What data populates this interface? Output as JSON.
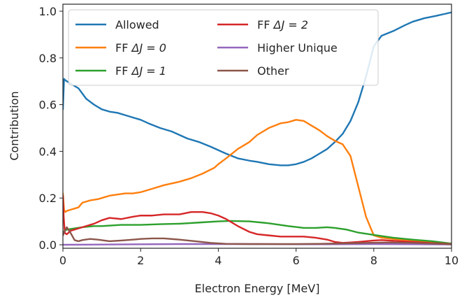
{
  "chart_data": {
    "type": "line",
    "title": "",
    "xlabel": "Electron Energy [MeV]",
    "ylabel": "Contribution",
    "xlim": [
      0,
      10
    ],
    "ylim": [
      -0.015,
      1.03
    ],
    "xticks": [
      0,
      2,
      4,
      6,
      8,
      10
    ],
    "yticks": [
      0.0,
      0.2,
      0.4,
      0.6,
      0.8,
      1.0
    ],
    "xtick_labels": [
      "0",
      "2",
      "4",
      "6",
      "8",
      "10"
    ],
    "ytick_labels": [
      "0.0",
      "0.2",
      "0.4",
      "0.6",
      "0.8",
      "1.0"
    ],
    "grid": false,
    "legend_placement": "top-left",
    "legend_columns": 2,
    "series": [
      {
        "name": "Allowed",
        "label_plain": "Allowed",
        "color": "#1f77b4",
        "x": [
          0.0,
          0.03,
          0.06,
          0.1,
          0.2,
          0.4,
          0.6,
          0.8,
          1.0,
          1.2,
          1.4,
          1.6,
          1.8,
          2.0,
          2.2,
          2.5,
          2.8,
          3.0,
          3.2,
          3.5,
          3.8,
          4.0,
          4.2,
          4.5,
          4.8,
          5.0,
          5.3,
          5.6,
          5.8,
          6.0,
          6.2,
          6.4,
          6.6,
          6.8,
          7.0,
          7.2,
          7.4,
          7.6,
          7.8,
          8.0,
          8.2,
          8.5,
          8.8,
          9.0,
          9.3,
          9.6,
          10.0
        ],
        "y": [
          0.58,
          0.71,
          0.705,
          0.7,
          0.69,
          0.67,
          0.625,
          0.6,
          0.58,
          0.57,
          0.565,
          0.555,
          0.545,
          0.535,
          0.52,
          0.5,
          0.485,
          0.47,
          0.455,
          0.44,
          0.42,
          0.405,
          0.39,
          0.37,
          0.36,
          0.355,
          0.345,
          0.34,
          0.34,
          0.345,
          0.355,
          0.37,
          0.39,
          0.41,
          0.44,
          0.475,
          0.53,
          0.61,
          0.72,
          0.85,
          0.895,
          0.915,
          0.94,
          0.955,
          0.97,
          0.98,
          0.995
        ]
      },
      {
        "name": "FF ΔJ = 0",
        "label_plain": "FF ",
        "label_math": "ΔJ = 0",
        "color": "#ff7f0e",
        "x": [
          0.0,
          0.03,
          0.06,
          0.1,
          0.2,
          0.4,
          0.5,
          0.7,
          0.9,
          1.0,
          1.2,
          1.4,
          1.6,
          1.8,
          2.0,
          2.3,
          2.6,
          3.0,
          3.3,
          3.6,
          3.9,
          4.0,
          4.2,
          4.5,
          4.8,
          5.0,
          5.3,
          5.6,
          5.8,
          6.0,
          6.2,
          6.4,
          6.6,
          6.8,
          7.0,
          7.2,
          7.4,
          7.6,
          7.8,
          8.0,
          8.2,
          8.5,
          9.0,
          9.5,
          10.0
        ],
        "y": [
          0.22,
          0.15,
          0.14,
          0.145,
          0.15,
          0.16,
          0.18,
          0.19,
          0.195,
          0.2,
          0.21,
          0.215,
          0.22,
          0.22,
          0.225,
          0.24,
          0.255,
          0.27,
          0.285,
          0.305,
          0.33,
          0.345,
          0.37,
          0.41,
          0.44,
          0.47,
          0.5,
          0.52,
          0.525,
          0.535,
          0.53,
          0.51,
          0.49,
          0.465,
          0.445,
          0.43,
          0.38,
          0.25,
          0.12,
          0.04,
          0.03,
          0.025,
          0.018,
          0.01,
          0.003
        ]
      },
      {
        "name": "FF ΔJ = 1",
        "label_plain": "FF ",
        "label_math": "ΔJ = 1",
        "color": "#2ca02c",
        "x": [
          0.0,
          0.05,
          0.1,
          0.3,
          0.5,
          0.8,
          1.0,
          1.5,
          2.0,
          2.5,
          3.0,
          3.5,
          4.0,
          4.3,
          4.8,
          5.3,
          5.8,
          6.2,
          6.5,
          6.8,
          7.0,
          7.3,
          7.6,
          8.0,
          8.5,
          9.0,
          9.5,
          10.0
        ],
        "y": [
          0.05,
          0.06,
          0.065,
          0.07,
          0.075,
          0.08,
          0.08,
          0.085,
          0.085,
          0.088,
          0.09,
          0.095,
          0.1,
          0.102,
          0.1,
          0.092,
          0.08,
          0.072,
          0.072,
          0.075,
          0.072,
          0.065,
          0.052,
          0.042,
          0.03,
          0.022,
          0.015,
          0.005
        ]
      },
      {
        "name": "FF ΔJ = 2",
        "label_plain": "FF ",
        "label_math": "ΔJ = 2",
        "color": "#d62728",
        "x": [
          0.0,
          0.02,
          0.05,
          0.1,
          0.2,
          0.4,
          0.6,
          0.8,
          1.0,
          1.2,
          1.5,
          1.8,
          2.0,
          2.3,
          2.6,
          2.8,
          3.0,
          3.3,
          3.6,
          3.8,
          4.0,
          4.2,
          4.5,
          4.8,
          5.0,
          5.3,
          5.6,
          5.9,
          6.2,
          6.5,
          6.8,
          7.0,
          7.2,
          7.4,
          7.6,
          7.8,
          8.0,
          8.2,
          8.5,
          9.0,
          9.5,
          10.0
        ],
        "y": [
          0.21,
          0.12,
          0.05,
          0.045,
          0.06,
          0.07,
          0.08,
          0.09,
          0.105,
          0.115,
          0.11,
          0.12,
          0.125,
          0.125,
          0.13,
          0.13,
          0.13,
          0.14,
          0.14,
          0.135,
          0.125,
          0.11,
          0.08,
          0.055,
          0.045,
          0.04,
          0.035,
          0.035,
          0.035,
          0.03,
          0.022,
          0.012,
          0.008,
          0.01,
          0.012,
          0.015,
          0.018,
          0.02,
          0.017,
          0.012,
          0.007,
          0.003
        ]
      },
      {
        "name": "Higher Unique",
        "label_plain": "Higher Unique",
        "color": "#9467bd",
        "x": [
          0.0,
          1.0,
          2.0,
          3.0,
          4.0,
          5.0,
          6.0,
          7.0,
          8.0,
          9.0,
          10.0
        ],
        "y": [
          0.0,
          0.001,
          0.002,
          0.003,
          0.003,
          0.003,
          0.002,
          0.002,
          0.003,
          0.002,
          0.001
        ]
      },
      {
        "name": "Other",
        "label_plain": "Other",
        "color": "#8c564b",
        "x": [
          0.0,
          0.05,
          0.1,
          0.2,
          0.3,
          0.4,
          0.5,
          0.7,
          0.9,
          1.2,
          1.5,
          1.8,
          2.0,
          2.3,
          2.6,
          3.0,
          3.4,
          3.8,
          4.2,
          4.8,
          5.4,
          6.0,
          6.6,
          7.2,
          7.8,
          8.4,
          9.0,
          9.5,
          10.0
        ],
        "y": [
          0.04,
          0.06,
          0.075,
          0.05,
          0.02,
          0.015,
          0.02,
          0.025,
          0.022,
          0.015,
          0.018,
          0.022,
          0.025,
          0.027,
          0.027,
          0.022,
          0.015,
          0.008,
          0.004,
          0.003,
          0.003,
          0.003,
          0.004,
          0.006,
          0.008,
          0.01,
          0.008,
          0.005,
          0.002
        ]
      }
    ]
  }
}
